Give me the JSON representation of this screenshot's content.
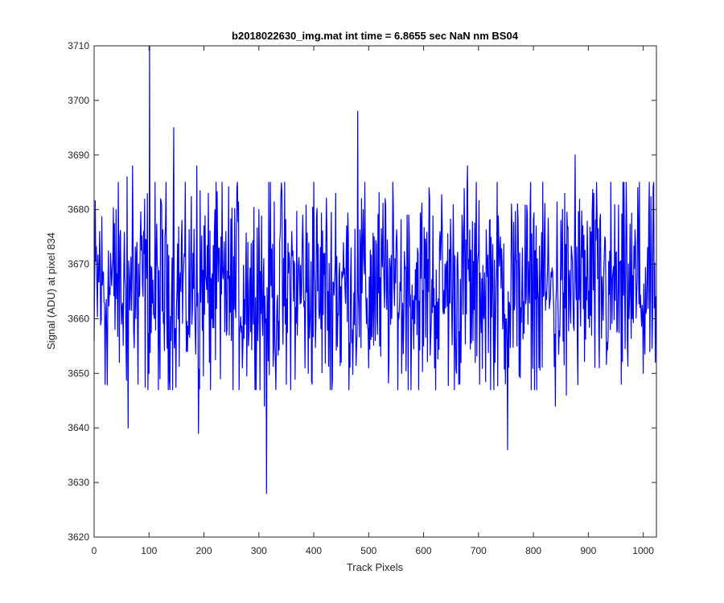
{
  "chart_data": {
    "type": "line",
    "title": "b2018022630_img.mat int time = 6.8655 sec  NaN nm BS04",
    "xlabel": "Track Pixels",
    "ylabel": "Signal (ADU) at pixel 834",
    "xlim": [
      0,
      1024
    ],
    "ylim": [
      3620,
      3710
    ],
    "xticks": [
      0,
      100,
      200,
      300,
      400,
      500,
      600,
      700,
      800,
      900,
      1000
    ],
    "yticks": [
      3620,
      3630,
      3640,
      3650,
      3660,
      3670,
      3680,
      3690,
      3700,
      3710
    ],
    "grid": false,
    "box": true,
    "series": [
      {
        "color": "#0000ff",
        "summary": {
          "n_points": 1024,
          "baseline_mean": 3665.5,
          "noise_range": [
            3647,
            3685
          ]
        },
        "x": [
          0,
          10,
          20,
          30,
          40,
          50,
          60,
          62,
          70,
          80,
          90,
          100,
          101,
          110,
          120,
          130,
          140,
          145,
          150,
          160,
          170,
          180,
          187,
          190,
          200,
          210,
          220,
          230,
          240,
          250,
          260,
          270,
          280,
          290,
          300,
          310,
          313,
          314,
          320,
          330,
          340,
          350,
          360,
          370,
          380,
          390,
          400,
          410,
          420,
          430,
          440,
          450,
          460,
          470,
          480,
          481,
          490,
          500,
          510,
          520,
          530,
          540,
          550,
          560,
          570,
          580,
          590,
          600,
          610,
          620,
          630,
          640,
          650,
          660,
          670,
          680,
          690,
          700,
          710,
          720,
          730,
          740,
          750,
          753,
          760,
          770,
          780,
          790,
          800,
          810,
          820,
          830,
          840,
          850,
          860,
          870,
          876,
          880,
          890,
          900,
          910,
          920,
          930,
          940,
          950,
          960,
          970,
          980,
          990,
          1000,
          1010,
          1020,
          1024
        ],
        "y": [
          3656,
          3676,
          3648,
          3672,
          3680,
          3659,
          3686,
          3640,
          3688,
          3648,
          3676,
          3650,
          3710,
          3660,
          3649,
          3677,
          3656,
          3695,
          3662,
          3678,
          3654,
          3672,
          3688,
          3639,
          3677,
          3652,
          3680,
          3649,
          3676,
          3656,
          3684,
          3651,
          3674,
          3659,
          3680,
          3644,
          3660,
          3628,
          3671,
          3652,
          3682,
          3648,
          3676,
          3657,
          3679,
          3650,
          3685,
          3660,
          3672,
          3647,
          3683,
          3652,
          3677,
          3658,
          3698,
          3665,
          3680,
          3651,
          3675,
          3655,
          3682,
          3659,
          3674,
          3650,
          3679,
          3660,
          3672,
          3655,
          3684,
          3651,
          3676,
          3662,
          3673,
          3650,
          3679,
          3688,
          3656,
          3672,
          3660,
          3678,
          3652,
          3675,
          3660,
          3636,
          3681,
          3655,
          3673,
          3659,
          3678,
          3651,
          3676,
          3663,
          3644,
          3678,
          3646,
          3672,
          3690,
          3655,
          3677,
          3660,
          3683,
          3651,
          3675,
          3658,
          3672,
          3648,
          3676,
          3660,
          3684,
          3650,
          3679,
          3662,
          3656
        ]
      }
    ]
  }
}
